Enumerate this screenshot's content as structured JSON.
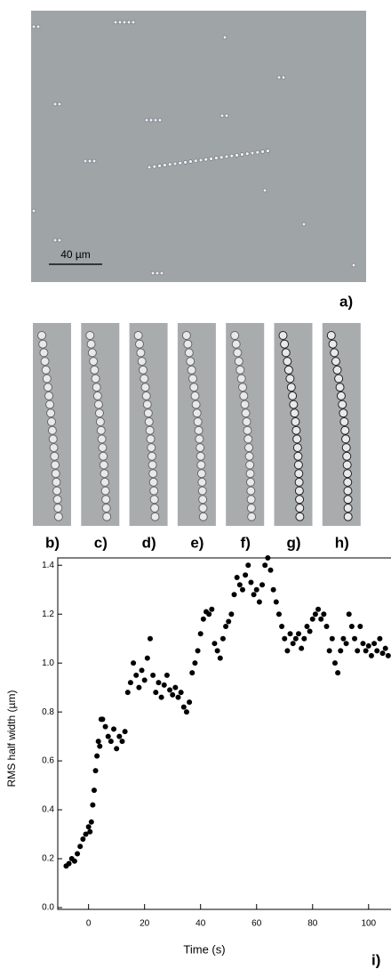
{
  "micrograph": {
    "scale_bar": "40 µm",
    "label": "a)"
  },
  "strips": {
    "labels": [
      "b)",
      "c)",
      "d)",
      "e)",
      "f)",
      "g)",
      "h)"
    ]
  },
  "chart_data": {
    "type": "scatter",
    "label": "i)",
    "x_label": "Time (s)",
    "y_label": "RMS half width (µm)",
    "color": "#000000",
    "xlim": [
      -11,
      108
    ],
    "xticks": [
      0,
      20,
      40,
      60,
      80,
      100
    ],
    "ylim": [
      0,
      1.43
    ],
    "yticks": [
      {
        "value": 0,
        "label": "0.0"
      },
      0.2,
      0.4,
      0.6,
      0.8,
      {
        "value": 1,
        "label": "1.0"
      },
      1.2,
      1.4
    ],
    "x": [
      -8,
      -7,
      -6,
      -5,
      -4,
      -3,
      -2,
      -1,
      0,
      0.5,
      1,
      1.5,
      2,
      2.5,
      3,
      3.5,
      4,
      4.5,
      5,
      6,
      7,
      8,
      9,
      10,
      11,
      12,
      13,
      14,
      15,
      16,
      17,
      18,
      19,
      20,
      21,
      22,
      23,
      24,
      25,
      26,
      27,
      28,
      29,
      30,
      31,
      32,
      33,
      34,
      35,
      36,
      37,
      38,
      39,
      40,
      41,
      42,
      43,
      44,
      45,
      46,
      47,
      48,
      49,
      50,
      51,
      52,
      53,
      54,
      55,
      56,
      57,
      58,
      59,
      60,
      61,
      62,
      63,
      64,
      65,
      66,
      67,
      68,
      69,
      70,
      71,
      72,
      73,
      74,
      75,
      76,
      77,
      78,
      79,
      80,
      81,
      82,
      83,
      84,
      85,
      86,
      87,
      88,
      89,
      90,
      91,
      92,
      93,
      94,
      95,
      96,
      97,
      98,
      99,
      100,
      101,
      102,
      103,
      104,
      105,
      106,
      107
    ],
    "values": [
      0.17,
      0.18,
      0.2,
      0.19,
      0.22,
      0.25,
      0.28,
      0.3,
      0.33,
      0.31,
      0.35,
      0.42,
      0.48,
      0.56,
      0.62,
      0.68,
      0.66,
      0.77,
      0.77,
      0.74,
      0.7,
      0.68,
      0.73,
      0.65,
      0.7,
      0.68,
      0.72,
      0.88,
      0.92,
      1.0,
      0.95,
      0.9,
      0.97,
      0.93,
      1.02,
      1.1,
      0.95,
      0.88,
      0.92,
      0.86,
      0.91,
      0.95,
      0.89,
      0.87,
      0.9,
      0.86,
      0.88,
      0.82,
      0.8,
      0.84,
      0.96,
      1.0,
      1.05,
      1.12,
      1.18,
      1.21,
      1.2,
      1.22,
      1.08,
      1.05,
      1.02,
      1.1,
      1.15,
      1.17,
      1.2,
      1.28,
      1.35,
      1.32,
      1.3,
      1.36,
      1.4,
      1.33,
      1.28,
      1.3,
      1.25,
      1.32,
      1.4,
      1.43,
      1.38,
      1.3,
      1.25,
      1.2,
      1.15,
      1.1,
      1.05,
      1.12,
      1.08,
      1.1,
      1.12,
      1.06,
      1.1,
      1.15,
      1.13,
      1.18,
      1.2,
      1.22,
      1.18,
      1.2,
      1.15,
      1.05,
      1.1,
      1.0,
      0.96,
      1.05,
      1.1,
      1.08,
      1.2,
      1.15,
      1.1,
      1.05,
      1.15,
      1.08,
      1.05,
      1.07,
      1.03,
      1.08,
      1.05,
      1.1,
      1.04,
      1.06,
      1.03
    ]
  }
}
